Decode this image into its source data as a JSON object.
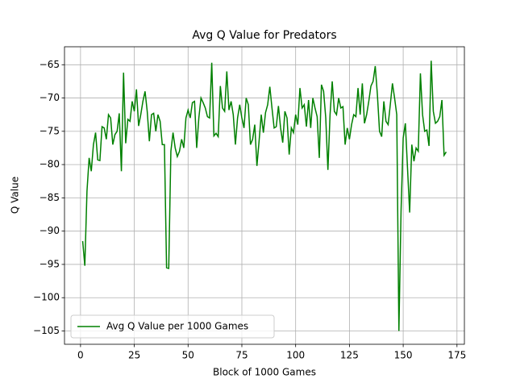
{
  "chart_data": {
    "type": "line",
    "title": "Avg Q Value for Predators",
    "x_label": "Block of 1000 Games",
    "y_label": "Q Value",
    "x": [
      1,
      2,
      3,
      4,
      5,
      6,
      7,
      8,
      9,
      10,
      11,
      12,
      13,
      14,
      15,
      16,
      17,
      18,
      19,
      20,
      21,
      22,
      23,
      24,
      25,
      26,
      27,
      28,
      29,
      30,
      31,
      32,
      33,
      34,
      35,
      36,
      37,
      38,
      39,
      40,
      41,
      42,
      43,
      44,
      45,
      46,
      47,
      48,
      49,
      50,
      51,
      52,
      53,
      54,
      55,
      56,
      57,
      58,
      59,
      60,
      61,
      62,
      63,
      64,
      65,
      66,
      67,
      68,
      69,
      70,
      71,
      72,
      73,
      74,
      75,
      76,
      77,
      78,
      79,
      80,
      81,
      82,
      83,
      84,
      85,
      86,
      87,
      88,
      89,
      90,
      91,
      92,
      93,
      94,
      95,
      96,
      97,
      98,
      99,
      100,
      101,
      102,
      103,
      104,
      105,
      106,
      107,
      108,
      109,
      110,
      111,
      112,
      113,
      114,
      115,
      116,
      117,
      118,
      119,
      120,
      121,
      122,
      123,
      124,
      125,
      126,
      127,
      128,
      129,
      130,
      131,
      132,
      133,
      134,
      135,
      136,
      137,
      138,
      139,
      140,
      141,
      142,
      143,
      144,
      145,
      146,
      147,
      148,
      149,
      150,
      151,
      152,
      153,
      154,
      155,
      156,
      157,
      158,
      159,
      160,
      161,
      162,
      163,
      164,
      165,
      166,
      167,
      168,
      169,
      170
    ],
    "series": [
      {
        "name": "Avg Q Value per 1000 Games",
        "color": "#008000",
        "values": [
          -91.5,
          -95.2,
          -84,
          -79,
          -81,
          -77,
          -75.2,
          -79.3,
          -79.4,
          -74.3,
          -74.5,
          -76.2,
          -72.5,
          -73,
          -77,
          -75.5,
          -75,
          -72.3,
          -81,
          -66.2,
          -76.8,
          -73.2,
          -73.5,
          -70.5,
          -72,
          -68.7,
          -74.2,
          -72.5,
          -70.5,
          -69,
          -72,
          -76.5,
          -72.5,
          -72.3,
          -75,
          -72.5,
          -73.5,
          -77,
          -77,
          -95.5,
          -95.6,
          -78,
          -75.2,
          -77.5,
          -78.8,
          -78,
          -76.2,
          -77.5,
          -73,
          -71.8,
          -73,
          -70.7,
          -70.5,
          -77.5,
          -73,
          -70,
          -70.7,
          -71.5,
          -72.8,
          -73,
          -64.7,
          -75.7,
          -75.3,
          -75.8,
          -68.2,
          -71.5,
          -72,
          -66,
          -71.8,
          -70.5,
          -72.5,
          -77,
          -73,
          -71,
          -73,
          -74.5,
          -70,
          -71,
          -77,
          -76.2,
          -74,
          -80.2,
          -76.5,
          -72.5,
          -75.2,
          -72.2,
          -71,
          -68.3,
          -71.5,
          -74.5,
          -74.3,
          -71.2,
          -74.5,
          -76.7,
          -72,
          -73,
          -78.5,
          -74.5,
          -75.2,
          -72.5,
          -74,
          -68.5,
          -71.5,
          -71,
          -74.3,
          -70.3,
          -74.5,
          -70,
          -71.5,
          -72.8,
          -79,
          -68,
          -69,
          -73,
          -80.8,
          -72.5,
          -67.5,
          -72,
          -72.5,
          -70,
          -71.5,
          -71.3,
          -77,
          -74.5,
          -76.2,
          -74,
          -72.5,
          -72.8,
          -68.5,
          -72.5,
          -67.8,
          -73.8,
          -72.5,
          -70.5,
          -68.2,
          -67.5,
          -65.2,
          -69.5,
          -75,
          -75.8,
          -70.5,
          -73.5,
          -74,
          -71,
          -67.8,
          -70,
          -72.5,
          -105,
          -87,
          -76,
          -73.8,
          -80.5,
          -87.2,
          -77,
          -79.5,
          -77.5,
          -78,
          -66.3,
          -72.5,
          -75,
          -74.8,
          -77.2,
          -64.4,
          -72,
          -73.8,
          -73.5,
          -72.8,
          -70.3,
          -78.6,
          -78.1
        ]
      }
    ],
    "xlim": [
      -7.45,
      178.45
    ],
    "ylim": [
      -107.0,
      -62.3
    ],
    "xticks": [
      0,
      25,
      50,
      75,
      100,
      125,
      150,
      175
    ],
    "yticks": [
      {
        "value": -65,
        "label": "−65"
      },
      {
        "value": -70,
        "label": "−70"
      },
      {
        "value": -75,
        "label": "−75"
      },
      {
        "value": -80,
        "label": "−80"
      },
      {
        "value": -85,
        "label": "−85"
      },
      {
        "value": -90,
        "label": "−90"
      },
      {
        "value": -95,
        "label": "−95"
      },
      {
        "value": -100,
        "label": "−100"
      },
      {
        "value": -105,
        "label": "−105"
      }
    ],
    "grid": true,
    "legend": "lower left"
  }
}
